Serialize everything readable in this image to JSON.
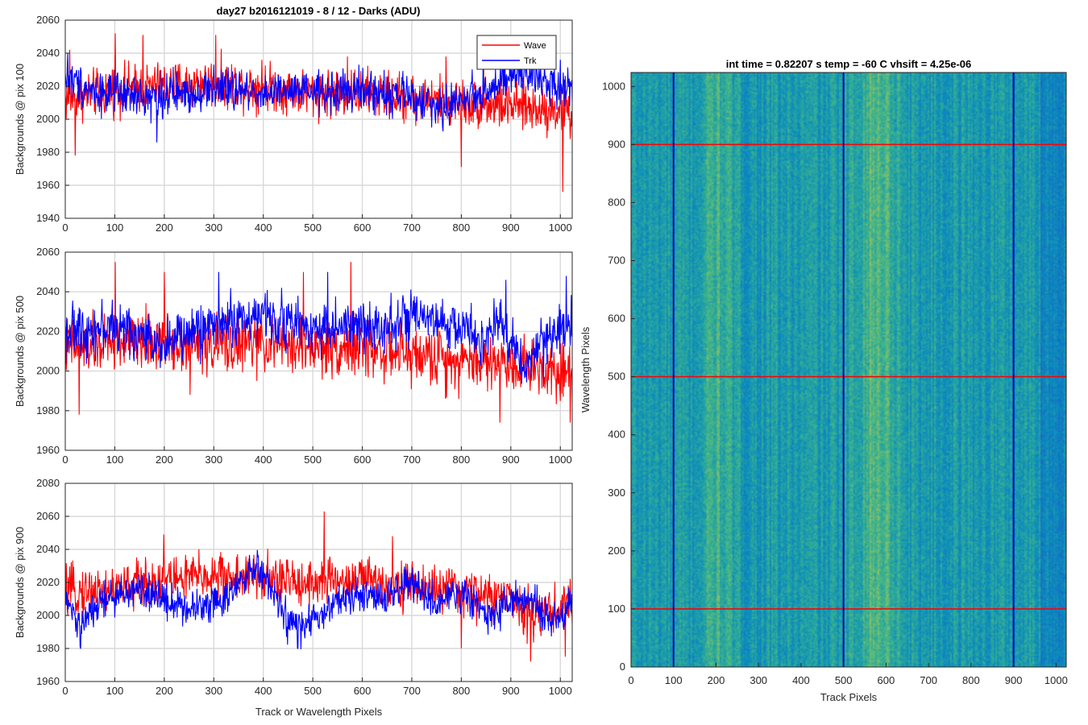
{
  "figure": {
    "title": "day27 b2016121019 - 8 / 12 - Darks (ADU)",
    "colors": {
      "wave": "#ff0000",
      "trk": "#0000ff",
      "grid": "#d9d9d9",
      "axis": "#262626"
    }
  },
  "chart_data": [
    {
      "type": "line",
      "title": "day27 b2016121019 - 8 / 12 - Darks (ADU)",
      "xlabel": "",
      "ylabel": "Backgrounds @ pix 100",
      "xlim": [
        0,
        1024
      ],
      "ylim": [
        1940,
        2060
      ],
      "xticks": [
        0,
        100,
        200,
        300,
        400,
        500,
        600,
        700,
        800,
        900,
        1000
      ],
      "yticks": [
        1940,
        1960,
        1980,
        2000,
        2020,
        2040,
        2060
      ],
      "grid": true,
      "legend": "top-right",
      "series": [
        {
          "name": "Wave",
          "mean": 2016,
          "noise": 8,
          "anchors": [
            [
              0,
              2012
            ],
            [
              100,
              2018
            ],
            [
              200,
              2020
            ],
            [
              300,
              2022
            ],
            [
              400,
              2020
            ],
            [
              500,
              2016
            ],
            [
              600,
              2016
            ],
            [
              700,
              2012
            ],
            [
              800,
              2010
            ],
            [
              900,
              2008
            ],
            [
              1024,
              2005
            ]
          ],
          "spikes": [
            [
              9,
              2042
            ],
            [
              20,
              1978
            ],
            [
              101,
              2052
            ],
            [
              157,
              2051
            ],
            [
              304,
              2051
            ],
            [
              397,
              2036
            ],
            [
              570,
              2038
            ],
            [
              769,
              2038
            ],
            [
              800,
              1971
            ],
            [
              845,
              2040
            ],
            [
              1005,
              1956
            ],
            [
              1020,
              1988
            ]
          ]
        },
        {
          "name": "Trk",
          "mean": 2016,
          "noise": 7,
          "anchors": [
            [
              0,
              2025
            ],
            [
              60,
              2017
            ],
            [
              150,
              2013
            ],
            [
              250,
              2016
            ],
            [
              300,
              2018
            ],
            [
              400,
              2016
            ],
            [
              500,
              2016
            ],
            [
              600,
              2017
            ],
            [
              700,
              2014
            ],
            [
              760,
              2006
            ],
            [
              800,
              2012
            ],
            [
              870,
              2020
            ],
            [
              920,
              2028
            ],
            [
              960,
              2024
            ],
            [
              1024,
              2019
            ]
          ],
          "spikes": [
            [
              5,
              2040
            ],
            [
              185,
              1986
            ],
            [
              300,
              2033
            ],
            [
              740,
              1995
            ],
            [
              1000,
              2036
            ]
          ]
        }
      ]
    },
    {
      "type": "line",
      "title": "",
      "xlabel": "",
      "ylabel": "Backgrounds @ pix 500",
      "xlim": [
        0,
        1024
      ],
      "ylim": [
        1960,
        2060
      ],
      "xticks": [
        0,
        100,
        200,
        300,
        400,
        500,
        600,
        700,
        800,
        900,
        1000
      ],
      "yticks": [
        1960,
        1980,
        2000,
        2020,
        2040,
        2060
      ],
      "grid": true,
      "series": [
        {
          "name": "Wave",
          "mean": 2012,
          "noise": 8,
          "anchors": [
            [
              0,
              2012
            ],
            [
              100,
              2014
            ],
            [
              200,
              2015
            ],
            [
              300,
              2013
            ],
            [
              400,
              2014
            ],
            [
              500,
              2012
            ],
            [
              600,
              2012
            ],
            [
              700,
              2008
            ],
            [
              800,
              2006
            ],
            [
              900,
              2004
            ],
            [
              1024,
              2000
            ]
          ],
          "spikes": [
            [
              28,
              1978
            ],
            [
              101,
              2055
            ],
            [
              200,
              2050
            ],
            [
              252,
              1988
            ],
            [
              481,
              2050
            ],
            [
              577,
              2055
            ],
            [
              768,
              1986
            ],
            [
              878,
              1974
            ],
            [
              1020,
              1974
            ]
          ]
        },
        {
          "name": "Trk",
          "mean": 2020,
          "noise": 7,
          "anchors": [
            [
              0,
              2020
            ],
            [
              100,
              2022
            ],
            [
              200,
              2014
            ],
            [
              300,
              2024
            ],
            [
              400,
              2028
            ],
            [
              500,
              2022
            ],
            [
              600,
              2022
            ],
            [
              700,
              2026
            ],
            [
              800,
              2022
            ],
            [
              850,
              2015
            ],
            [
              880,
              2025
            ],
            [
              930,
              2002
            ],
            [
              960,
              2014
            ],
            [
              1024,
              2026
            ]
          ],
          "spikes": [
            [
              95,
              2036
            ],
            [
              310,
              2050
            ],
            [
              530,
              2050
            ],
            [
              890,
              2046
            ],
            [
              1012,
              2048
            ],
            [
              966,
              1992
            ]
          ]
        }
      ]
    },
    {
      "type": "line",
      "title": "",
      "xlabel": "Track or Wavelength Pixels",
      "ylabel": "Backgrounds @ pix 900",
      "xlim": [
        0,
        1024
      ],
      "ylim": [
        1960,
        2080
      ],
      "xticks": [
        0,
        100,
        200,
        300,
        400,
        500,
        600,
        700,
        800,
        900,
        1000
      ],
      "yticks": [
        1960,
        1980,
        2000,
        2020,
        2040,
        2060,
        2080
      ],
      "grid": true,
      "series": [
        {
          "name": "Wave",
          "mean": 2018,
          "noise": 8,
          "anchors": [
            [
              0,
              2014
            ],
            [
              100,
              2016
            ],
            [
              200,
              2022
            ],
            [
              300,
              2024
            ],
            [
              400,
              2022
            ],
            [
              500,
              2020
            ],
            [
              600,
              2022
            ],
            [
              700,
              2018
            ],
            [
              800,
              2014
            ],
            [
              900,
              2010
            ],
            [
              950,
              2000
            ],
            [
              1024,
              2008
            ]
          ],
          "spikes": [
            [
              199,
              2049
            ],
            [
              523,
              2063
            ],
            [
              661,
              2048
            ],
            [
              800,
              1980
            ],
            [
              940,
              1972
            ],
            [
              1010,
              1975
            ]
          ]
        },
        {
          "name": "Trk",
          "mean": 2010,
          "noise": 6,
          "anchors": [
            [
              0,
              2010
            ],
            [
              30,
              1992
            ],
            [
              70,
              2008
            ],
            [
              150,
              2016
            ],
            [
              250,
              2004
            ],
            [
              330,
              2012
            ],
            [
              390,
              2030
            ],
            [
              450,
              1996
            ],
            [
              480,
              1992
            ],
            [
              560,
              2010
            ],
            [
              650,
              2012
            ],
            [
              700,
              2020
            ],
            [
              750,
              2006
            ],
            [
              800,
              2014
            ],
            [
              860,
              2000
            ],
            [
              900,
              2010
            ],
            [
              950,
              2006
            ],
            [
              1000,
              1994
            ],
            [
              1024,
              2012
            ]
          ],
          "spikes": [
            [
              30,
              1981
            ],
            [
              470,
              1980
            ],
            [
              390,
              2036
            ]
          ]
        }
      ]
    },
    {
      "type": "heatmap",
      "title": "int time = 0.82207 s    temp = -60 C    vhsift = 4.25e-06",
      "xlabel": "Track Pixels",
      "ylabel": "Wavelength Pixels",
      "xlim": [
        0,
        1024
      ],
      "ylim": [
        0,
        1024
      ],
      "xticks": [
        0,
        100,
        200,
        300,
        400,
        500,
        600,
        700,
        800,
        900,
        1000
      ],
      "yticks": [
        0,
        100,
        200,
        300,
        400,
        500,
        600,
        700,
        800,
        900,
        1000
      ],
      "colormap": "parula",
      "vertical_lines": {
        "color": "#0000c0",
        "x": [
          100,
          500,
          900
        ]
      },
      "horizontal_lines": {
        "color": "#ff0000",
        "y": [
          100,
          500,
          900
        ]
      },
      "bright_bands_x": [
        200,
        555,
        600
      ]
    }
  ]
}
